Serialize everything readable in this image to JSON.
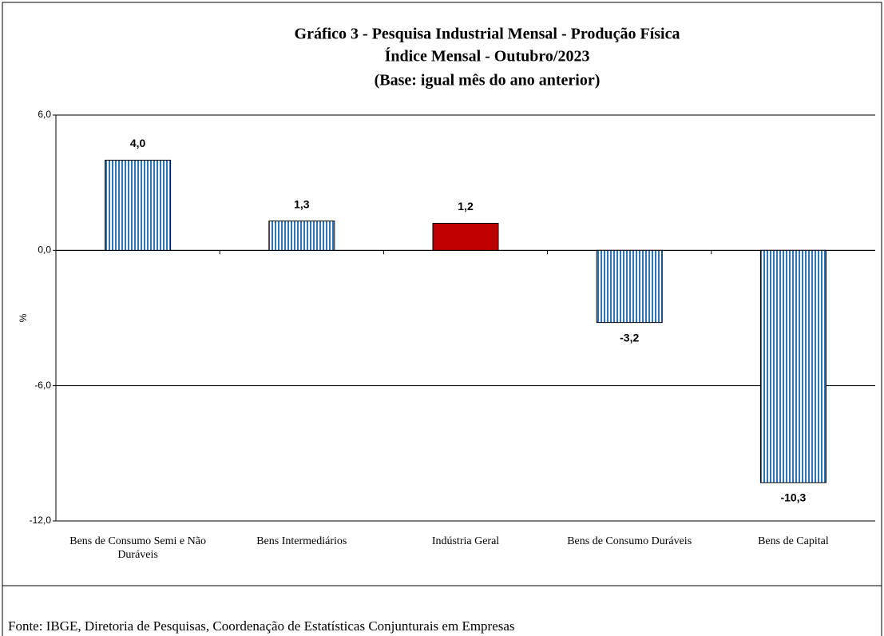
{
  "chart_data": {
    "type": "bar",
    "title": [
      "Gráfico 3 - Pesquisa Industrial Mensal - Produção Física",
      "Índice Mensal - Outubro/2023",
      "(Base: igual mês do ano anterior)"
    ],
    "y_label": "%",
    "categories": [
      "Bens de Consumo Semi e Não Duráveis",
      "Bens Intermediários",
      "Indústria Geral",
      "Bens de Consumo Duráveis",
      "Bens de Capital"
    ],
    "values": [
      4.0,
      1.3,
      1.2,
      -3.2,
      -10.3
    ],
    "value_labels": [
      "4,0",
      "1,3",
      "1,2",
      "-3,2",
      "-10,3"
    ],
    "colors": [
      "#2e75b6",
      "#2e75b6",
      "#c00000",
      "#2e75b6",
      "#2e75b6"
    ],
    "striped": [
      true,
      true,
      false,
      true,
      true
    ],
    "ylim": [
      -12,
      6
    ],
    "yticks": [
      {
        "value": 6,
        "label": "6,0"
      },
      {
        "value": 0,
        "label": "0,0"
      },
      {
        "value": -6,
        "label": "-6,0"
      },
      {
        "value": -12,
        "label": "-12,0"
      }
    ],
    "grid": true,
    "source": "Fonte: IBGE, Diretoria de Pesquisas, Coordenação de Estatísticas Conjunturais em Empresas"
  }
}
